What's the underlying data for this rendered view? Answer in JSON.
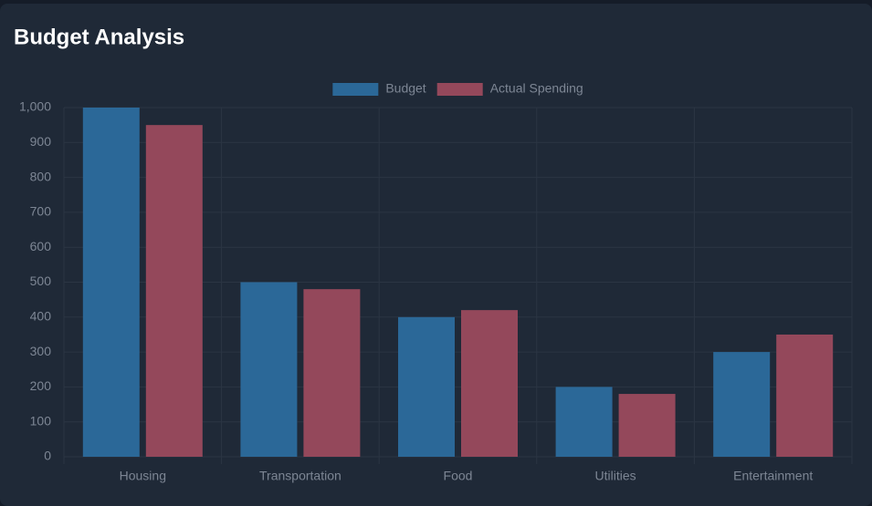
{
  "chart_data": {
    "type": "bar",
    "title": "Budget Analysis",
    "categories": [
      "Housing",
      "Transportation",
      "Food",
      "Utilities",
      "Entertainment"
    ],
    "series": [
      {
        "name": "Budget",
        "color": "#2b6898",
        "values": [
          1000,
          500,
          400,
          200,
          300
        ]
      },
      {
        "name": "Actual Spending",
        "color": "#94485b",
        "values": [
          950,
          480,
          420,
          180,
          350
        ]
      }
    ],
    "ylim": [
      0,
      1000
    ],
    "yticks": [
      0,
      100,
      200,
      300,
      400,
      500,
      600,
      700,
      800,
      900,
      {
        "value": 1000,
        "label": "1,000"
      }
    ],
    "grid": true,
    "legend": "top"
  }
}
